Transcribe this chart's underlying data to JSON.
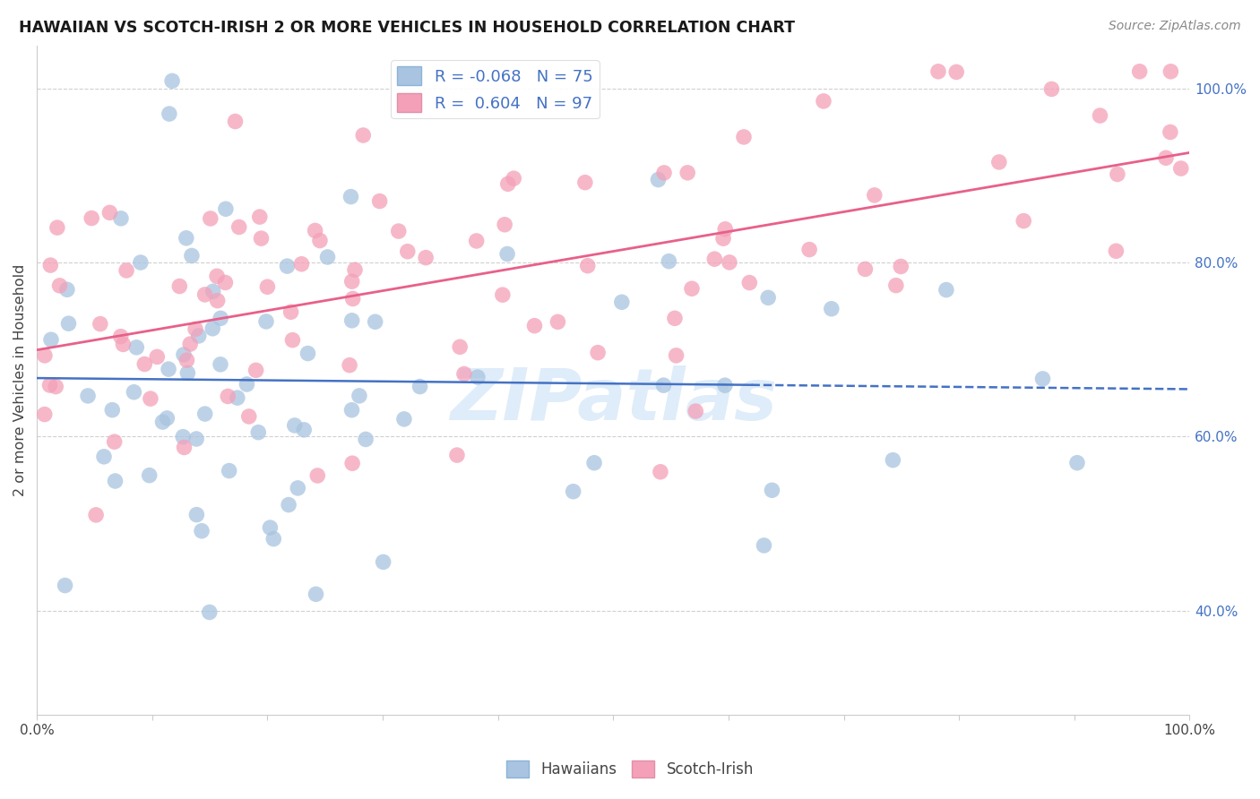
{
  "title": "HAWAIIAN VS SCOTCH-IRISH 2 OR MORE VEHICLES IN HOUSEHOLD CORRELATION CHART",
  "source": "Source: ZipAtlas.com",
  "ylabel": "2 or more Vehicles in Household",
  "right_yticks": [
    "40.0%",
    "60.0%",
    "80.0%",
    "100.0%"
  ],
  "right_ytick_vals": [
    0.4,
    0.6,
    0.8,
    1.0
  ],
  "hawaiians_R": -0.068,
  "hawaiians_N": 75,
  "scotch_irish_R": 0.604,
  "scotch_irish_N": 97,
  "hawaiians_color": "#a8c4e0",
  "scotch_irish_color": "#f4a0b8",
  "hawaiians_line_color": "#4472c4",
  "scotch_irish_line_color": "#e8608a",
  "watermark": "ZIPatlas",
  "xmin": 0.0,
  "xmax": 1.0,
  "ymin": 0.28,
  "ymax": 1.05,
  "grid_color": "#d0d0d0",
  "legend_label_color": "#4472c4"
}
